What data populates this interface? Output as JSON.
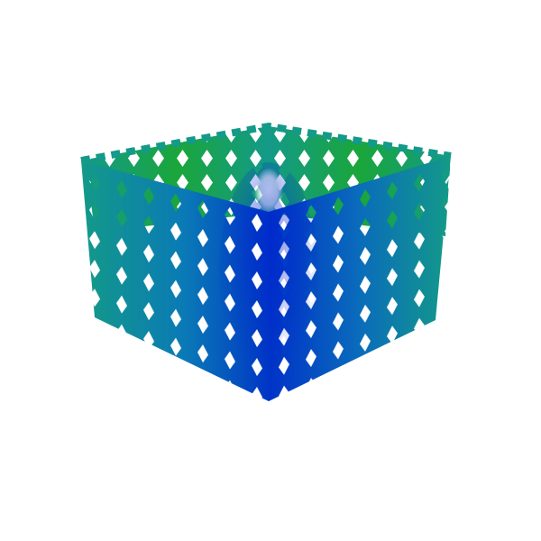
{
  "scene": {
    "subject": "lattice-cube",
    "background_color": "#ffffff",
    "colors": {
      "green": "#1aa63a",
      "teal": "#139a88",
      "cyan_blue": "#0a73b8",
      "deep_blue": "#0030c8",
      "highlight": "#ffffff"
    }
  }
}
